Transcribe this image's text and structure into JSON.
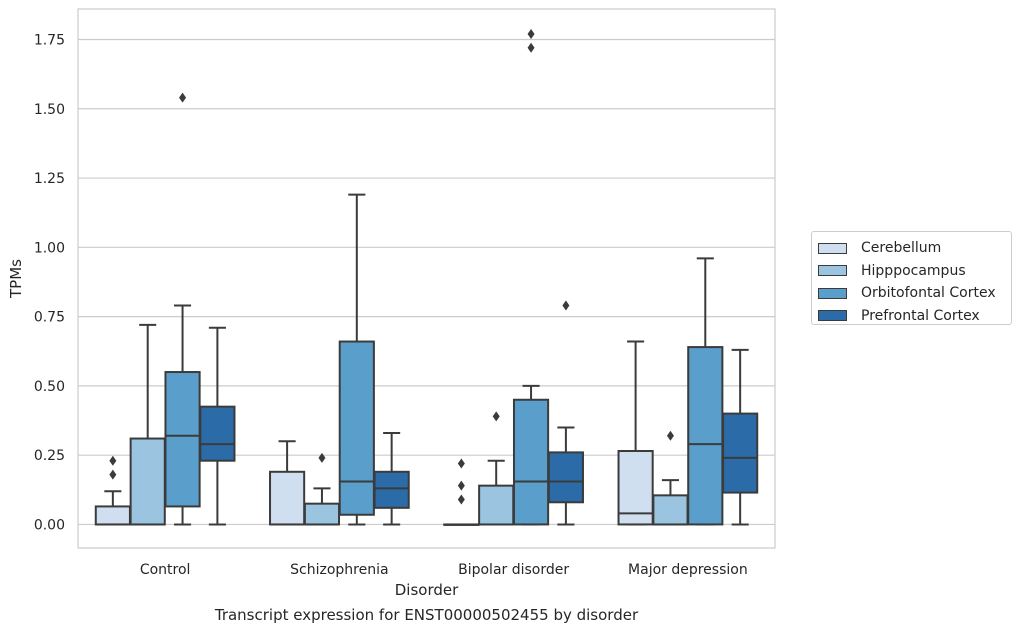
{
  "caption": "Transcript expression for ENST00000502455 by disorder",
  "chart_data": {
    "type": "box",
    "xlabel": "Disorder",
    "ylabel": "TPMs",
    "ylim": [
      -0.085,
      1.86
    ],
    "yticks": [
      "0.00",
      "0.25",
      "0.50",
      "0.75",
      "1.00",
      "1.25",
      "1.50",
      "1.75"
    ],
    "grid": "horizontal",
    "legend_position": "right",
    "categories": [
      "Control",
      "Schizophrenia",
      "Bipolar disorder",
      "Major depression"
    ],
    "series": [
      {
        "name": "Cerebellum",
        "color": "#cfdff0",
        "boxes": [
          {
            "whisker_low": 0.0,
            "q1": 0.0,
            "median": 0.0,
            "q3": 0.065,
            "whisker_high": 0.12,
            "outliers": [
              0.18,
              0.23
            ]
          },
          {
            "whisker_low": 0.0,
            "q1": 0.0,
            "median": 0.0,
            "q3": 0.19,
            "whisker_high": 0.3,
            "outliers": []
          },
          {
            "whisker_low": 0.0,
            "q1": 0.0,
            "median": 0.0,
            "q3": 0.0,
            "whisker_high": 0.0,
            "outliers": [
              0.09,
              0.14,
              0.22
            ]
          },
          {
            "whisker_low": 0.0,
            "q1": 0.0,
            "median": 0.04,
            "q3": 0.265,
            "whisker_high": 0.66,
            "outliers": []
          }
        ]
      },
      {
        "name": "Hipppocampus",
        "color": "#9ac4e0",
        "boxes": [
          {
            "whisker_low": 0.0,
            "q1": 0.0,
            "median": 0.0,
            "q3": 0.31,
            "whisker_high": 0.72,
            "outliers": []
          },
          {
            "whisker_low": 0.0,
            "q1": 0.0,
            "median": 0.0,
            "q3": 0.075,
            "whisker_high": 0.13,
            "outliers": [
              0.24
            ]
          },
          {
            "whisker_low": 0.0,
            "q1": 0.0,
            "median": 0.0,
            "q3": 0.14,
            "whisker_high": 0.23,
            "outliers": [
              0.39
            ]
          },
          {
            "whisker_low": 0.0,
            "q1": 0.0,
            "median": 0.0,
            "q3": 0.105,
            "whisker_high": 0.16,
            "outliers": [
              0.32
            ]
          }
        ]
      },
      {
        "name": "Orbitofontal Cortex",
        "color": "#5a9ecb",
        "boxes": [
          {
            "whisker_low": 0.0,
            "q1": 0.065,
            "median": 0.32,
            "q3": 0.55,
            "whisker_high": 0.79,
            "outliers": [
              1.54
            ]
          },
          {
            "whisker_low": 0.0,
            "q1": 0.035,
            "median": 0.155,
            "q3": 0.66,
            "whisker_high": 1.19,
            "outliers": []
          },
          {
            "whisker_low": 0.0,
            "q1": 0.0,
            "median": 0.155,
            "q3": 0.45,
            "whisker_high": 0.5,
            "outliers": [
              1.72,
              1.77
            ]
          },
          {
            "whisker_low": 0.0,
            "q1": 0.0,
            "median": 0.29,
            "q3": 0.64,
            "whisker_high": 0.96,
            "outliers": []
          }
        ]
      },
      {
        "name": "Prefrontal Cortex",
        "color": "#2b6ba8",
        "boxes": [
          {
            "whisker_low": 0.0,
            "q1": 0.23,
            "median": 0.29,
            "q3": 0.425,
            "whisker_high": 0.71,
            "outliers": []
          },
          {
            "whisker_low": 0.0,
            "q1": 0.06,
            "median": 0.13,
            "q3": 0.19,
            "whisker_high": 0.33,
            "outliers": []
          },
          {
            "whisker_low": 0.0,
            "q1": 0.08,
            "median": 0.155,
            "q3": 0.26,
            "whisker_high": 0.35,
            "outliers": [
              0.79
            ]
          },
          {
            "whisker_low": 0.0,
            "q1": 0.115,
            "median": 0.24,
            "q3": 0.4,
            "whisker_high": 0.63,
            "outliers": []
          }
        ]
      }
    ]
  }
}
